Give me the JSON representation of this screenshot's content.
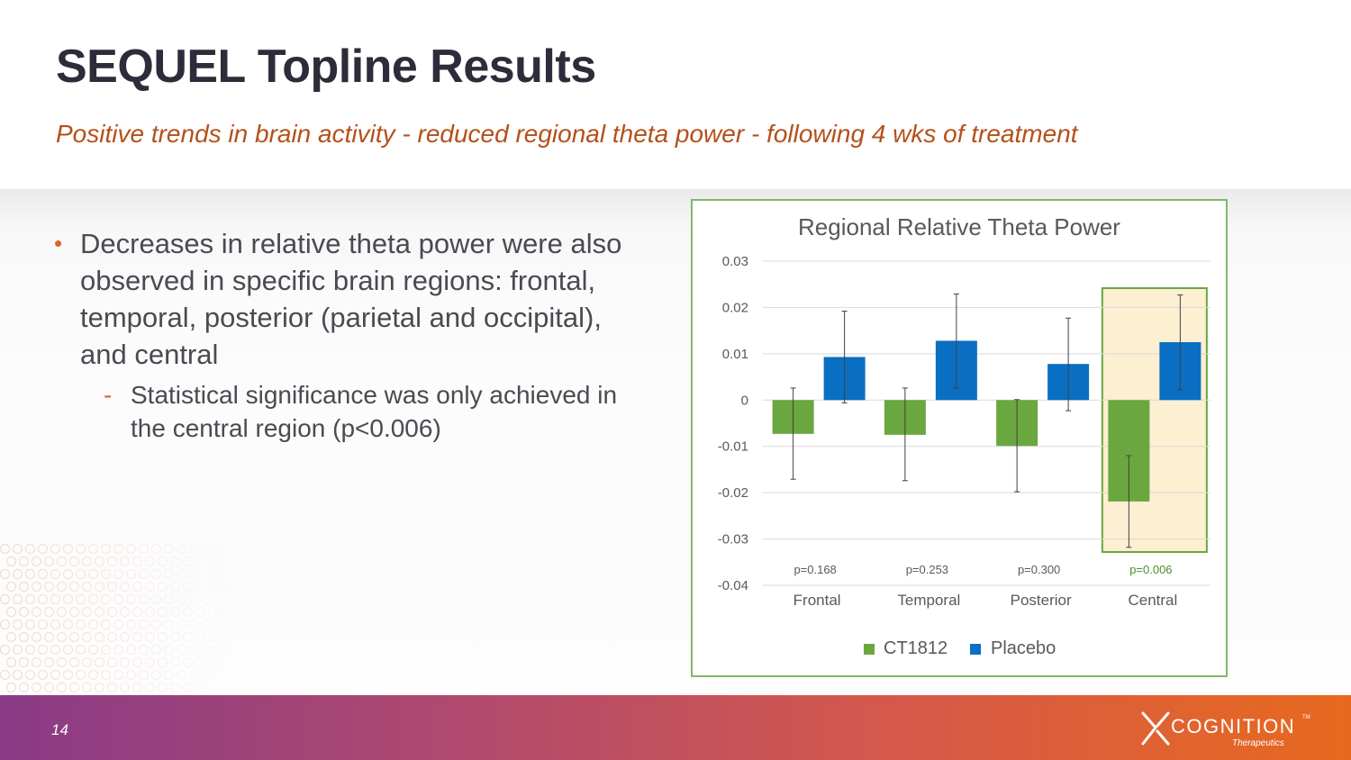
{
  "slide": {
    "title": "SEQUEL Topline Results",
    "subtitle": "Positive trends in brain activity  - reduced regional theta power - following 4 wks of treatment",
    "page_number": "14"
  },
  "bullets": {
    "main": "Decreases in relative theta power were also observed in specific brain regions: frontal, temporal, posterior (parietal and occipital), and central",
    "sub": "Statistical significance was only achieved in the central region (p<0.006)"
  },
  "logo": {
    "name": "COGNITION",
    "tm": "TM",
    "sub": "Therapeutics"
  },
  "colors": {
    "ct1812": "#6aa73f",
    "placebo": "#0a6fc2",
    "highlight_fill": "#fcefd2",
    "highlight_border": "#6aa73f",
    "significant_p": "#4d8f2f",
    "title_color": "#2c2c3a",
    "accent": "#b5501a"
  },
  "chart_data": {
    "type": "bar",
    "title": "Regional Relative Theta Power",
    "categories": [
      "Frontal",
      "Temporal",
      "Posterior",
      "Central"
    ],
    "series": [
      {
        "name": "CT1812",
        "values": [
          -0.0073,
          -0.0075,
          -0.0099,
          -0.0219
        ],
        "err_low": [
          -0.0171,
          -0.0174,
          -0.0198,
          -0.0318
        ],
        "err_high": [
          0.0026,
          0.0026,
          0.0001,
          -0.012
        ]
      },
      {
        "name": "Placebo",
        "values": [
          0.0093,
          0.0128,
          0.0078,
          0.0125
        ],
        "err_low": [
          -0.0006,
          0.0026,
          -0.0023,
          0.0022
        ],
        "err_high": [
          0.0192,
          0.0229,
          0.0177,
          0.0227
        ]
      }
    ],
    "p_values": [
      "p=0.168",
      "p=0.253",
      "p=0.300",
      "p=0.006"
    ],
    "significant_category": "Central",
    "ylim": [
      -0.04,
      0.03
    ],
    "yticks": [
      0.03,
      0.02,
      0.01,
      0,
      -0.01,
      -0.02,
      -0.03,
      -0.04
    ],
    "ytick_labels": [
      "0.03",
      "0.02",
      "0.01",
      "0",
      "-0.01",
      "-0.02",
      "-0.03",
      "-0.04"
    ],
    "xlabel": "",
    "ylabel": "",
    "grid": true,
    "legend_position": "bottom"
  }
}
